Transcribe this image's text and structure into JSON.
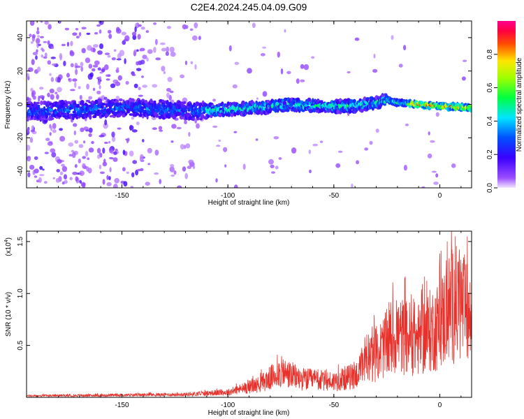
{
  "title": "C2E4.2024.245.04.09.G09",
  "chart_data": [
    {
      "type": "heatmap",
      "xlabel": "Height of straight line (km)",
      "ylabel": "Frequency (Hz)",
      "xlim": [
        -195,
        15
      ],
      "ylim": [
        -50,
        50
      ],
      "xticks": [
        -150,
        -100,
        -50,
        0
      ],
      "yticks": [
        -40,
        -20,
        0,
        20,
        40
      ],
      "colorbar": {
        "label": "Normalized spectral amplitude",
        "range": [
          0,
          1
        ],
        "ticks": [
          "0.0",
          "0.2",
          "0.4",
          "0.6",
          "0.8"
        ],
        "colormap": "rainbow (purple-blue-cyan-green-yellow-red-magenta)"
      },
      "ridge": {
        "description": "main spectral trace near 0 Hz",
        "points": [
          {
            "x": -190,
            "y": -4
          },
          {
            "x": -170,
            "y": -3
          },
          {
            "x": -150,
            "y": -2
          },
          {
            "x": -130,
            "y": -3
          },
          {
            "x": -115,
            "y": -4
          },
          {
            "x": -100,
            "y": -3
          },
          {
            "x": -85,
            "y": -2
          },
          {
            "x": -70,
            "y": 0
          },
          {
            "x": -55,
            "y": -1
          },
          {
            "x": -40,
            "y": -1
          },
          {
            "x": -30,
            "y": 1
          },
          {
            "x": -25,
            "y": 3
          },
          {
            "x": -20,
            "y": 1
          },
          {
            "x": -10,
            "y": 0
          },
          {
            "x": 0,
            "y": -1
          },
          {
            "x": 14,
            "y": -2
          }
        ]
      }
    },
    {
      "type": "line",
      "xlabel": "Height of straight line (km)",
      "ylabel": "SNR (10 * v/v)",
      "exponent_label": "(x10",
      "exponent_power": "4",
      "exponent_close": ")",
      "xlim": [
        -195,
        15
      ],
      "ylim": [
        0,
        1.6
      ],
      "xticks": [
        -150,
        -100,
        -50,
        0
      ],
      "yticks": [
        "0.5",
        "1.0",
        "1.5"
      ],
      "color": "#e8312b",
      "envelope": [
        {
          "x": -195,
          "y": 0.02
        },
        {
          "x": -150,
          "y": 0.03
        },
        {
          "x": -120,
          "y": 0.04
        },
        {
          "x": -100,
          "y": 0.07
        },
        {
          "x": -85,
          "y": 0.18
        },
        {
          "x": -75,
          "y": 0.35
        },
        {
          "x": -65,
          "y": 0.25
        },
        {
          "x": -50,
          "y": 0.22
        },
        {
          "x": -40,
          "y": 0.3
        },
        {
          "x": -30,
          "y": 0.6
        },
        {
          "x": -20,
          "y": 0.85
        },
        {
          "x": -10,
          "y": 0.8
        },
        {
          "x": 0,
          "y": 1.0
        },
        {
          "x": 5,
          "y": 1.25
        },
        {
          "x": 10,
          "y": 1.3
        },
        {
          "x": 15,
          "y": 1.0
        }
      ]
    }
  ]
}
